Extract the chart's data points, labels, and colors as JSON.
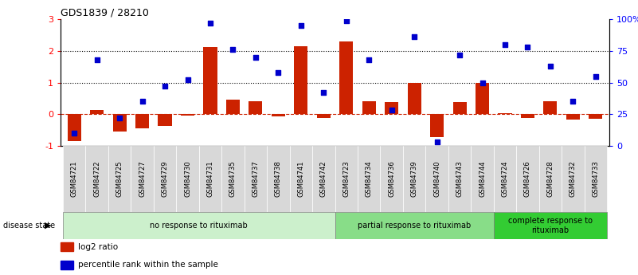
{
  "title": "GDS1839 / 28210",
  "samples": [
    "GSM84721",
    "GSM84722",
    "GSM84725",
    "GSM84727",
    "GSM84729",
    "GSM84730",
    "GSM84731",
    "GSM84735",
    "GSM84737",
    "GSM84738",
    "GSM84741",
    "GSM84742",
    "GSM84723",
    "GSM84734",
    "GSM84736",
    "GSM84739",
    "GSM84740",
    "GSM84743",
    "GSM84744",
    "GSM84724",
    "GSM84726",
    "GSM84728",
    "GSM84732",
    "GSM84733"
  ],
  "log2_ratio": [
    -0.85,
    0.13,
    -0.55,
    -0.45,
    -0.38,
    -0.05,
    2.12,
    0.45,
    0.42,
    -0.08,
    2.15,
    -0.13,
    2.3,
    0.42,
    0.38,
    1.0,
    -0.72,
    0.37,
    1.0,
    0.02,
    -0.12,
    0.42,
    -0.17,
    -0.15
  ],
  "percentile_rank_pct": [
    10,
    68,
    22,
    35,
    47,
    52,
    97,
    76,
    70,
    58,
    95,
    42,
    99,
    68,
    28,
    86,
    3,
    72,
    50,
    80,
    78,
    63,
    35,
    55
  ],
  "groups": [
    {
      "label": "no response to rituximab",
      "start": 0,
      "end": 12,
      "color": "#ccf0cc"
    },
    {
      "label": "partial response to rituximab",
      "start": 12,
      "end": 19,
      "color": "#88dd88"
    },
    {
      "label": "complete response to\nrituximab",
      "start": 19,
      "end": 24,
      "color": "#33cc33"
    }
  ],
  "bar_color": "#cc2200",
  "dot_color": "#0000cc",
  "ylim_left": [
    -1,
    3
  ],
  "ylim_right": [
    0,
    100
  ],
  "yticks_left": [
    -1,
    0,
    1,
    2,
    3
  ],
  "yticks_right": [
    0,
    25,
    50,
    75,
    100
  ],
  "ytick_labels_right": [
    "0",
    "25",
    "50",
    "75",
    "100%"
  ],
  "legend_items": [
    {
      "color": "#cc2200",
      "label": "log2 ratio"
    },
    {
      "color": "#0000cc",
      "label": "percentile rank within the sample"
    }
  ],
  "disease_state_label": "disease state"
}
